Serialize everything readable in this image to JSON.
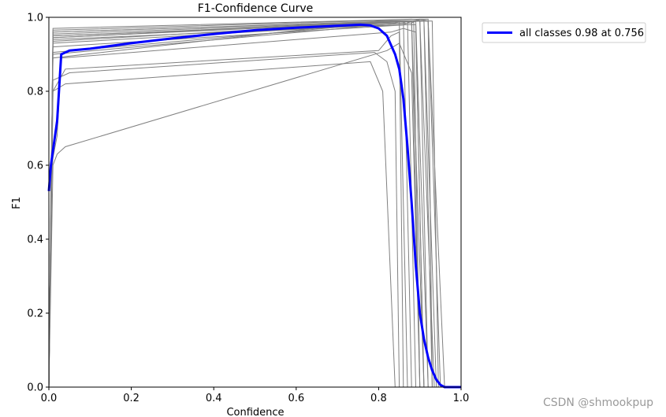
{
  "chart_data": {
    "type": "line",
    "title": "F1-Confidence Curve",
    "xlabel": "Confidence",
    "ylabel": "F1",
    "xlim": [
      0,
      1
    ],
    "ylim": [
      0,
      1
    ],
    "xticks": [
      "0.0",
      "0.2",
      "0.4",
      "0.6",
      "0.8",
      "1.0"
    ],
    "yticks": [
      "0.0",
      "0.2",
      "0.4",
      "0.6",
      "0.8",
      "1.0"
    ],
    "grid": false,
    "legend_position": "outside-top-right",
    "colors": {
      "main": "#0000ff",
      "classes": "#808080"
    },
    "main_series": {
      "name": "all classes 0.98 at 0.756",
      "x": [
        0.0,
        0.005,
        0.01,
        0.02,
        0.03,
        0.05,
        0.1,
        0.2,
        0.3,
        0.4,
        0.5,
        0.6,
        0.7,
        0.756,
        0.78,
        0.8,
        0.82,
        0.84,
        0.85,
        0.86,
        0.87,
        0.88,
        0.89,
        0.9,
        0.91,
        0.92,
        0.93,
        0.94,
        0.95,
        0.96,
        0.97,
        0.98,
        1.0
      ],
      "y": [
        0.53,
        0.6,
        0.64,
        0.72,
        0.9,
        0.91,
        0.915,
        0.93,
        0.943,
        0.955,
        0.965,
        0.972,
        0.977,
        0.98,
        0.978,
        0.97,
        0.95,
        0.9,
        0.86,
        0.78,
        0.65,
        0.5,
        0.33,
        0.2,
        0.13,
        0.08,
        0.045,
        0.02,
        0.006,
        0.0,
        0.0,
        0.0,
        0.0
      ]
    },
    "class_series": [
      {
        "x": [
          0.0,
          0.01,
          0.84,
          0.86,
          0.88,
          0.9
        ],
        "y": [
          0.0,
          0.95,
          0.985,
          0.99,
          0.99,
          0.0
        ]
      },
      {
        "x": [
          0.0,
          0.01,
          0.83,
          0.85,
          0.87
        ],
        "y": [
          0.0,
          0.96,
          0.99,
          0.99,
          0.0
        ]
      },
      {
        "x": [
          0.0,
          0.01,
          0.86,
          0.88,
          0.9,
          0.92
        ],
        "y": [
          0.0,
          0.94,
          0.98,
          0.99,
          0.99,
          0.0
        ]
      },
      {
        "x": [
          0.0,
          0.01,
          0.88,
          0.9,
          0.92,
          0.93
        ],
        "y": [
          0.0,
          0.93,
          0.985,
          0.995,
          0.99,
          0.0
        ]
      },
      {
        "x": [
          0.0,
          0.01,
          0.87,
          0.89,
          0.91
        ],
        "y": [
          0.0,
          0.92,
          0.98,
          0.98,
          0.0
        ]
      },
      {
        "x": [
          0.0,
          0.01,
          0.89,
          0.91,
          0.94
        ],
        "y": [
          0.0,
          0.955,
          0.99,
          0.99,
          0.0
        ]
      },
      {
        "x": [
          0.0,
          0.01,
          0.9,
          0.92,
          0.95
        ],
        "y": [
          0.0,
          0.965,
          0.995,
          0.995,
          0.0
        ]
      },
      {
        "x": [
          0.0,
          0.01,
          0.85,
          0.88,
          0.91
        ],
        "y": [
          0.0,
          0.945,
          0.99,
          0.99,
          0.0
        ]
      },
      {
        "x": [
          0.0,
          0.01,
          0.86,
          0.89,
          0.92
        ],
        "y": [
          0.0,
          0.96,
          0.99,
          0.99,
          0.0
        ]
      },
      {
        "x": [
          0.0,
          0.01,
          0.88,
          0.91,
          0.93
        ],
        "y": [
          0.0,
          0.97,
          0.995,
          0.99,
          0.0
        ]
      },
      {
        "x": [
          0.0,
          0.01,
          0.82,
          0.84,
          0.86,
          0.88
        ],
        "y": [
          0.0,
          0.905,
          0.985,
          0.99,
          0.99,
          0.0
        ]
      },
      {
        "x": [
          0.0,
          0.01,
          0.91,
          0.93,
          0.945
        ],
        "y": [
          0.0,
          0.95,
          0.99,
          0.99,
          0.0
        ]
      },
      {
        "x": [
          0.0,
          0.01,
          0.87,
          0.9,
          0.935
        ],
        "y": [
          0.0,
          0.935,
          0.99,
          0.99,
          0.0
        ]
      },
      {
        "x": [
          0.0,
          0.01,
          0.8,
          0.84,
          0.87,
          0.89
        ],
        "y": [
          0.0,
          0.89,
          0.99,
          0.99,
          0.99,
          0.0
        ]
      },
      {
        "x": [
          0.0,
          0.01,
          0.04,
          0.8,
          0.83,
          0.85,
          0.86
        ],
        "y": [
          0.0,
          0.8,
          0.86,
          0.91,
          0.95,
          0.96,
          0.0
        ]
      },
      {
        "x": [
          0.0,
          0.01,
          0.05,
          0.79,
          0.82,
          0.84,
          0.85
        ],
        "y": [
          0.0,
          0.83,
          0.85,
          0.905,
          0.88,
          0.8,
          0.0
        ]
      },
      {
        "x": [
          0.0,
          0.01,
          0.04,
          0.78,
          0.81,
          0.84
        ],
        "y": [
          0.0,
          0.8,
          0.82,
          0.88,
          0.8,
          0.0
        ]
      },
      {
        "x": [
          0.0,
          0.01,
          0.02,
          0.04,
          0.82,
          0.85,
          0.88,
          0.9
        ],
        "y": [
          0.0,
          0.6,
          0.63,
          0.65,
          0.91,
          0.93,
          0.85,
          0.0
        ]
      },
      {
        "x": [
          0.0,
          0.005,
          0.01,
          0.02,
          0.03,
          0.83,
          0.86,
          0.89,
          0.91
        ],
        "y": [
          0.0,
          0.55,
          0.62,
          0.68,
          0.89,
          0.96,
          0.97,
          0.96,
          0.0
        ]
      },
      {
        "x": [
          0.0,
          0.01,
          0.86,
          0.87,
          0.885,
          0.9
        ],
        "y": [
          0.0,
          0.9,
          0.985,
          0.99,
          0.99,
          0.0
        ]
      },
      {
        "x": [
          0.0,
          0.01,
          0.89,
          0.92,
          0.96
        ],
        "y": [
          0.0,
          0.945,
          0.99,
          0.99,
          0.0
        ]
      }
    ]
  },
  "watermark": "CSDN @shmookpup"
}
